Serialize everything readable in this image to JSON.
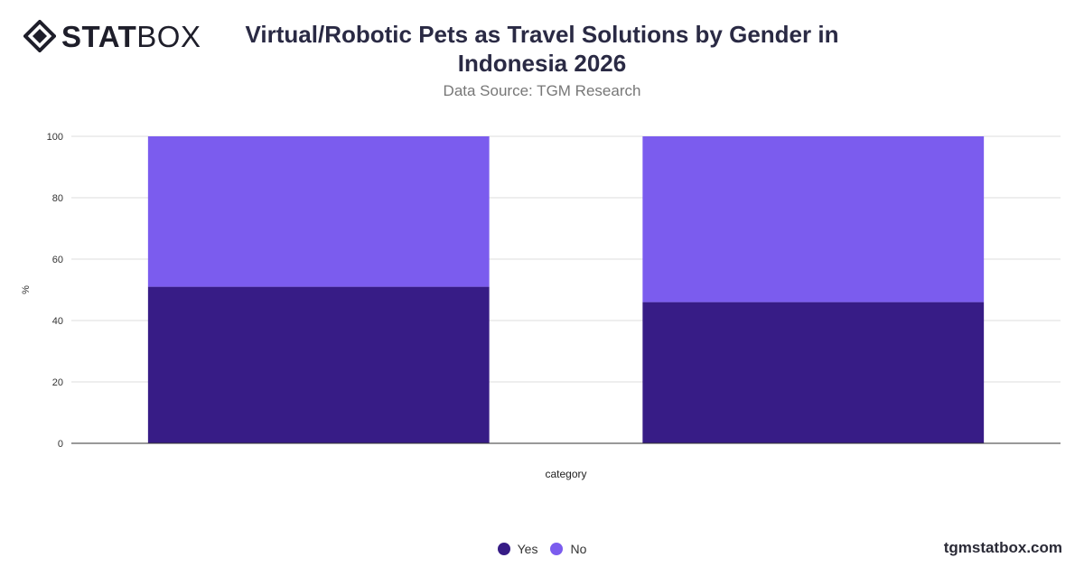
{
  "brand": {
    "logo_bold": "STAT",
    "logo_light": "BOX",
    "icon": "diamond-logo-icon"
  },
  "header": {
    "title": "Virtual/Robotic Pets as Travel Solutions by Gender in Indonesia 2026",
    "subtitle": "Data Source: TGM Research"
  },
  "footer": {
    "site": "tgmstatbox.com"
  },
  "colors": {
    "yes": "#371c86",
    "no": "#7b5cee",
    "grid": "#dddddd",
    "axis": "#333333"
  },
  "chart_data": {
    "type": "bar",
    "stacked": true,
    "categories": [
      "",
      ""
    ],
    "series": [
      {
        "name": "Yes",
        "values": [
          51,
          46
        ]
      },
      {
        "name": "No",
        "values": [
          49,
          54
        ]
      }
    ],
    "xlabel": "category",
    "ylabel": "%",
    "ylim": [
      0,
      100
    ],
    "yticks": [
      0,
      20,
      40,
      60,
      80,
      100
    ],
    "grid": true,
    "legend": "bottom-center"
  }
}
